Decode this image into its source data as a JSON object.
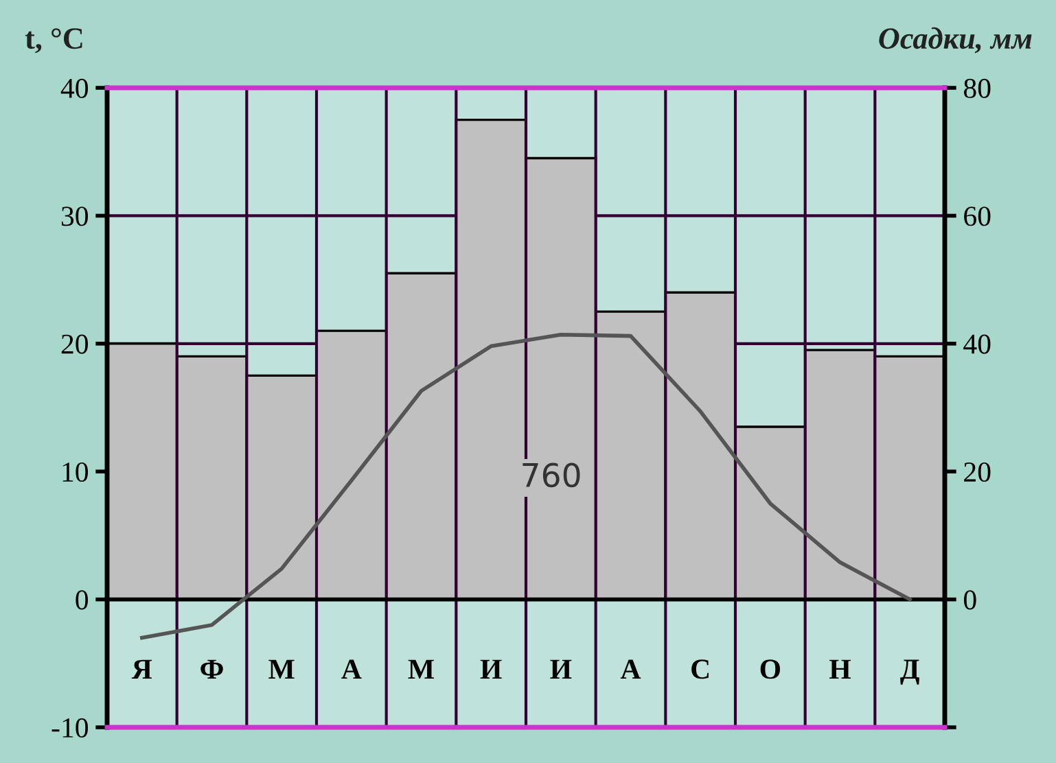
{
  "chart_data": {
    "type": "bar",
    "ylabel": "t, °C",
    "y2label": "Осадки, мм",
    "categories": [
      "Я",
      "Ф",
      "М",
      "А",
      "М",
      "И",
      "И",
      "А",
      "С",
      "О",
      "Н",
      "Д"
    ],
    "series": [
      {
        "axis": "y2",
        "color": "#c0c0c0",
        "values": [
          40,
          38,
          35,
          42,
          51,
          75,
          69,
          45,
          48,
          27,
          39,
          38
        ]
      },
      {
        "type": "line",
        "axis": "y",
        "color": "#555555",
        "values": [
          -3,
          -2,
          2.4,
          9.3,
          16.3,
          19.8,
          20.7,
          20.6,
          14.7,
          7.5,
          2.9,
          0
        ]
      }
    ],
    "ylim": [
      -10,
      40
    ],
    "yticks": [
      -10,
      0,
      10,
      20,
      30,
      40
    ],
    "y2lim": [
      -20,
      80
    ],
    "y2ticks": [
      {
        "value": -20,
        "label": null
      },
      0,
      20,
      40,
      60,
      80
    ],
    "ref_lines": [
      {
        "axis": "y",
        "value": 0,
        "color": "#000000"
      }
    ],
    "annotations": [
      "760"
    ],
    "grid": true,
    "line_style": "solid",
    "marker": "none"
  }
}
